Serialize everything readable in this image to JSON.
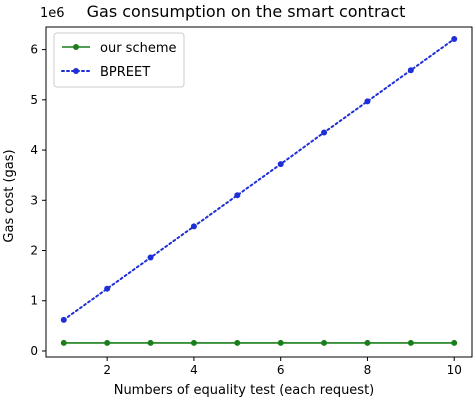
{
  "chart_data": {
    "type": "line",
    "title": "Gas consumption on the smart contract",
    "xlabel": "Numbers of equality test (each request)",
    "ylabel": "Gas cost (gas)",
    "y_offset_label": "1e6",
    "x": [
      1,
      2,
      3,
      4,
      5,
      6,
      7,
      8,
      9,
      10
    ],
    "xlim": [
      0.59,
      10.41
    ],
    "ylim": [
      -0.12,
      6.45
    ],
    "xticks": [
      2,
      4,
      6,
      8,
      10
    ],
    "yticks": [
      0,
      1,
      2,
      3,
      4,
      5,
      6
    ],
    "grid": false,
    "legend_position": "top-left",
    "series": [
      {
        "name": "our scheme",
        "color": "#1a7f1a",
        "style": "solid",
        "marker": "circle",
        "values": [
          0.16,
          0.16,
          0.16,
          0.16,
          0.16,
          0.16,
          0.16,
          0.16,
          0.16,
          0.16
        ]
      },
      {
        "name": "BPREET",
        "color": "#1f2fd6",
        "style": "dotted",
        "marker": "circle",
        "values": [
          0.62,
          1.24,
          1.86,
          2.48,
          3.1,
          3.72,
          4.35,
          4.97,
          5.59,
          6.21
        ]
      }
    ]
  }
}
